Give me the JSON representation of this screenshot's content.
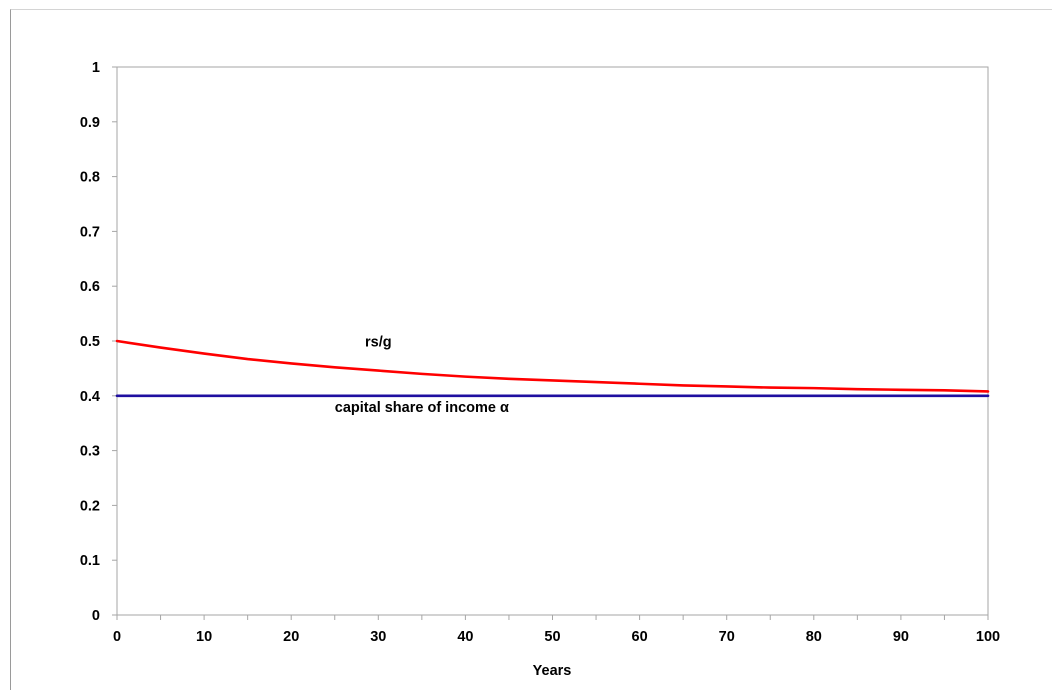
{
  "chart_data": {
    "type": "line",
    "xlabel": "Years",
    "ylabel": "",
    "xlim": [
      0,
      100
    ],
    "ylim": [
      0,
      1
    ],
    "x_ticks": [
      "0",
      "10",
      "20",
      "30",
      "40",
      "50",
      "60",
      "70",
      "80",
      "90",
      "100"
    ],
    "y_ticks": [
      "0",
      "0.1",
      "0.2",
      "0.3",
      "0.4",
      "0.5",
      "0.6",
      "0.7",
      "0.8",
      "0.9",
      "1"
    ],
    "grid": false,
    "x": [
      0,
      5,
      10,
      15,
      20,
      25,
      30,
      35,
      40,
      45,
      50,
      55,
      60,
      65,
      70,
      75,
      80,
      85,
      90,
      95,
      100
    ],
    "series": [
      {
        "name": "rs/g",
        "color": "#ff0000",
        "values": [
          0.5,
          0.488,
          0.477,
          0.467,
          0.459,
          0.452,
          0.446,
          0.44,
          0.435,
          0.431,
          0.428,
          0.425,
          0.422,
          0.419,
          0.417,
          0.415,
          0.414,
          0.412,
          0.411,
          0.41,
          0.408
        ]
      },
      {
        "name": "capital share of income α",
        "color": "#1f0fa0",
        "values": [
          0.4,
          0.4,
          0.4,
          0.4,
          0.4,
          0.4,
          0.4,
          0.4,
          0.4,
          0.4,
          0.4,
          0.4,
          0.4,
          0.4,
          0.4,
          0.4,
          0.4,
          0.4,
          0.4,
          0.4,
          0.4
        ]
      }
    ],
    "annotations": [
      {
        "text": "rs/g",
        "x": 30,
        "y": 0.49
      },
      {
        "text": "capital share of income α",
        "x": 35,
        "y": 0.37
      }
    ]
  }
}
